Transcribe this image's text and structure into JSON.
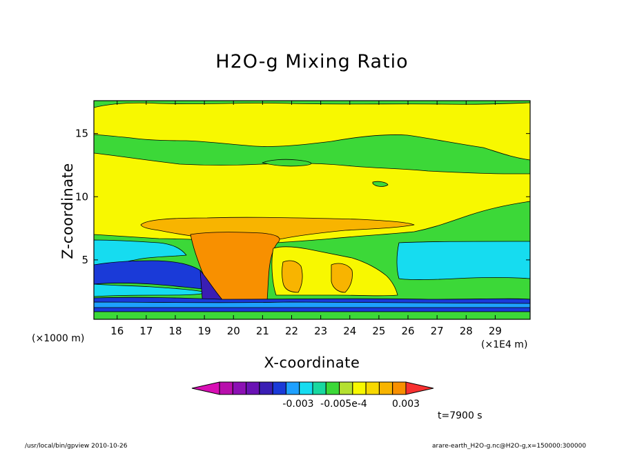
{
  "chart_data": {
    "type": "heatmap",
    "title": "H2O-g Mixing Ratio",
    "xlabel": "X-coordinate",
    "ylabel": "Z-coordinate",
    "x_unit_label": "(×1000 m)",
    "x_multiplier_label": "(×1E4 m)",
    "xlim": [
      15.2,
      30.2
    ],
    "ylim": [
      0.3,
      17.6
    ],
    "x_ticks": [
      16,
      17,
      18,
      19,
      20,
      21,
      22,
      23,
      24,
      25,
      26,
      27,
      28,
      29
    ],
    "y_ticks": [
      5,
      10,
      15
    ],
    "time_label": "t=7900 s",
    "colorbar": {
      "colors": [
        "#d80fb4",
        "#b80fac",
        "#8c10b4",
        "#6a12b4",
        "#3a1eb4",
        "#1a3ad8",
        "#1ea0ff",
        "#16dcf0",
        "#18d8a0",
        "#3cd838",
        "#b4e030",
        "#f8f800",
        "#f8d800",
        "#f8b400",
        "#f89000",
        "#f83030"
      ],
      "tick_labels": [
        "-0.003",
        "-0.005e-4",
        "0.003"
      ]
    }
  },
  "footer": {
    "left": "/usr/local/bin/gpview   2010-10-26",
    "right": "arare-earth_H2O-g.nc@H2O-g,x=150000:300000"
  }
}
